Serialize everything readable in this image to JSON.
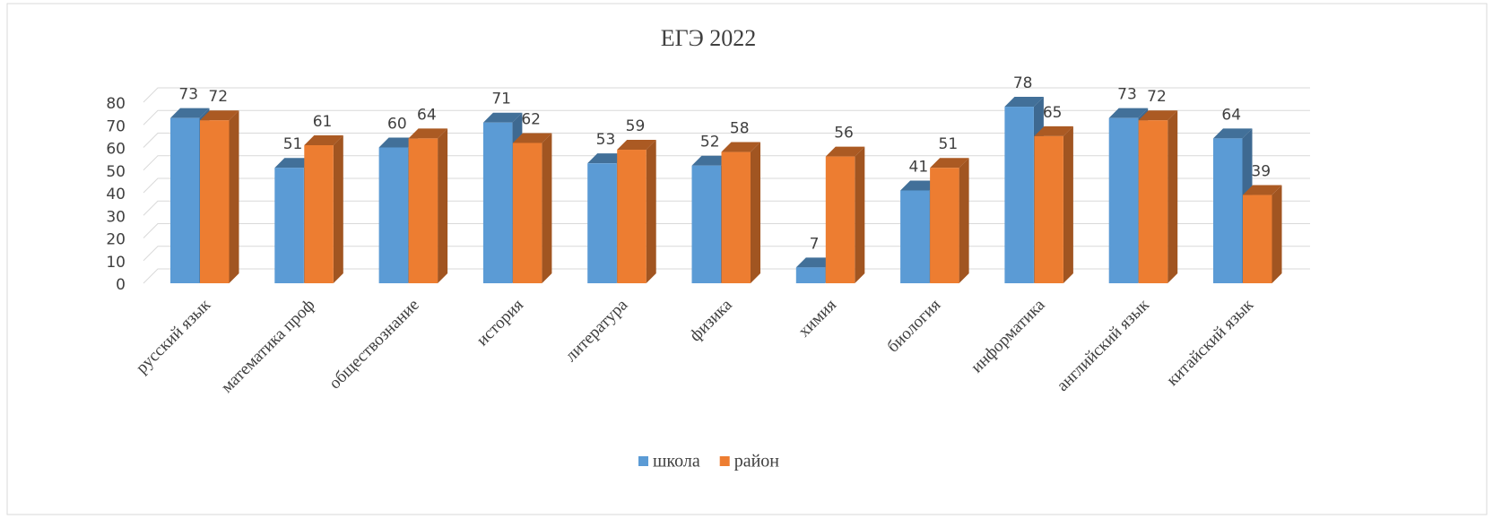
{
  "chart_data": {
    "type": "bar3d",
    "title": "ЕГЭ 2022",
    "categories": [
      "русский язык",
      "математика проф",
      "обществознание",
      "история",
      "литература",
      "физика",
      "химия",
      "биология",
      "информатика",
      "английский язык",
      "китайский язык"
    ],
    "series": [
      {
        "name": "школа",
        "color": "#5b9bd5",
        "values": [
          73,
          51,
          60,
          71,
          53,
          52,
          7,
          41,
          78,
          73,
          64
        ]
      },
      {
        "name": "район",
        "color": "#ed7d31",
        "values": [
          72,
          61,
          64,
          62,
          59,
          58,
          56,
          51,
          65,
          72,
          39
        ]
      }
    ],
    "ylim": [
      0,
      80
    ],
    "yticks": [
      0,
      10,
      20,
      30,
      40,
      50,
      60,
      70,
      80
    ],
    "grid": true,
    "legend": "bottom"
  }
}
